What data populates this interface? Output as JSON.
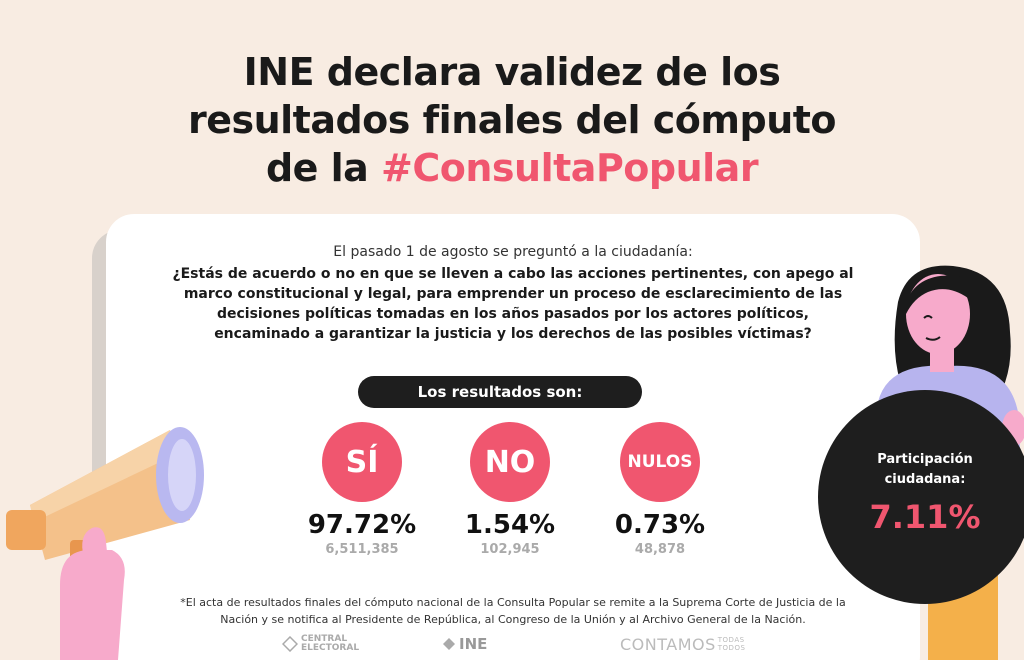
{
  "title": {
    "line1": "INE declara validez de los",
    "line2": "resultados finales del cómputo",
    "line3_prefix": "de la ",
    "hashtag": "#ConsultaPopular"
  },
  "question": {
    "intro": "El pasado 1 de agosto se preguntó a la ciudadanía:",
    "text": "¿Estás de acuerdo o no en que se lleven a cabo las acciones pertinentes, con apego al marco constitucional y legal, para emprender un proceso de esclarecimiento de las decisiones políticas tomadas en los años pasados por los actores políticos, encaminado a garantizar la justicia y los derechos de las posibles víctimas?"
  },
  "results_label": "Los resultados son:",
  "options": [
    {
      "label": "SÍ",
      "percent": "97.72%",
      "votes": "6,511,385"
    },
    {
      "label": "NO",
      "percent": "1.54%",
      "votes": "102,945"
    },
    {
      "label": "NULOS",
      "percent": "0.73%",
      "votes": "48,878"
    }
  ],
  "participation": {
    "label_line1": "Participación",
    "label_line2": "ciudadana:",
    "value": "7.11%"
  },
  "footnote": "*El acta de resultados finales del cómputo nacional de la Consulta Popular se remite a la Suprema Corte de Justicia de la Nación y se notifica al Presidente de República, al Congreso de la Unión y al Archivo General de la Nación.",
  "logos": {
    "central_line1": "CENTRAL",
    "central_line2": "ELECTORAL",
    "ine": "INE",
    "contamos": "CONTAMOS",
    "todas": "TODAS",
    "todos": "TODOS"
  },
  "colors": {
    "accent": "#f0566f",
    "dark": "#1e1e1e",
    "background": "#f8ece2"
  },
  "icons": [
    "megaphone-icon",
    "woman-illustration"
  ]
}
